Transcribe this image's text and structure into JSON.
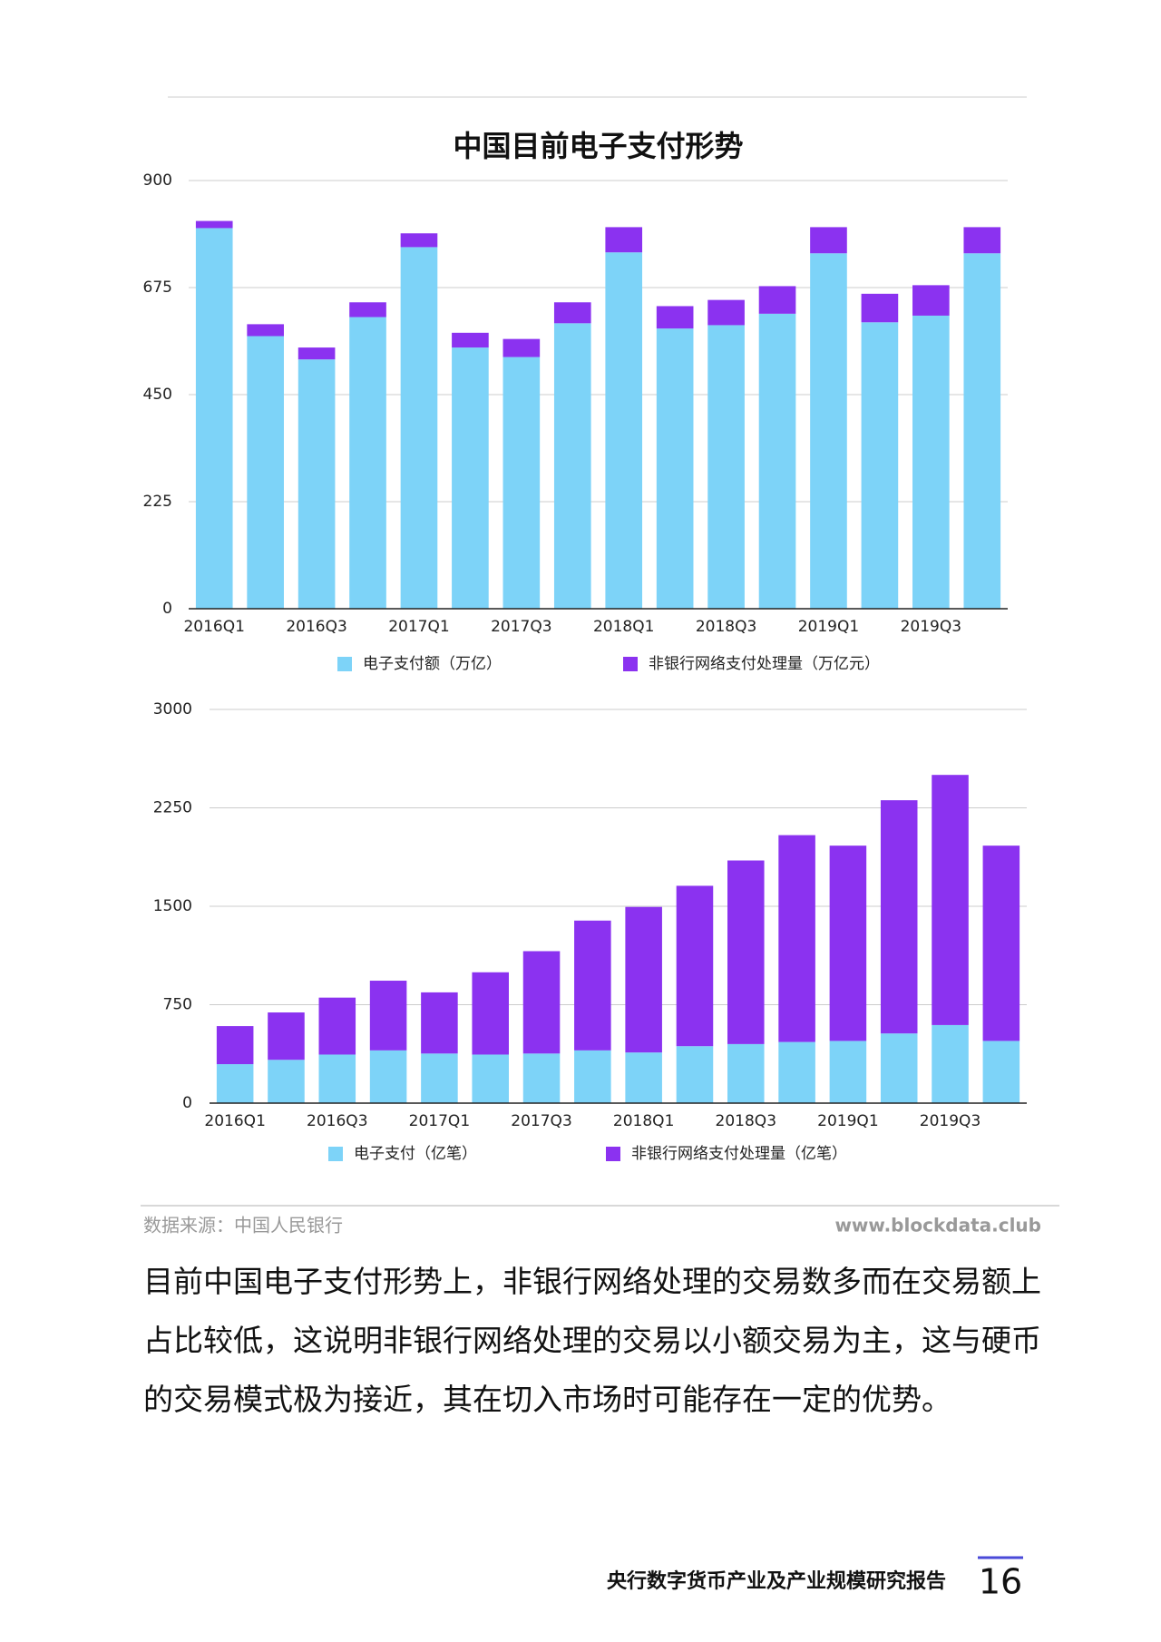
{
  "chart_data": [
    {
      "type": "bar",
      "stacked": true,
      "title": "中国目前电子支付形势",
      "categories": [
        "2016Q1",
        null,
        "2016Q3",
        null,
        "2017Q1",
        null,
        "2017Q3",
        null,
        "2018Q1",
        null,
        "2018Q3",
        null,
        "2019Q1",
        null,
        "2019Q3",
        null
      ],
      "series": [
        {
          "name": "电子支付额（万亿）",
          "color": "#7dd3f8",
          "values": [
            800,
            573,
            524,
            613,
            760,
            549,
            529,
            600,
            749,
            589,
            596,
            620,
            747,
            602,
            616,
            747
          ]
        },
        {
          "name": "非银行网络支付处理量（万亿元）",
          "color": "#8b32f0",
          "values": [
            15,
            25,
            25,
            31,
            29,
            31,
            38,
            44,
            53,
            47,
            53,
            58,
            55,
            60,
            64,
            55
          ]
        }
      ],
      "ylim": [
        0,
        900
      ],
      "yticks": [
        0,
        225,
        450,
        675,
        900
      ],
      "grid": true
    },
    {
      "type": "bar",
      "stacked": true,
      "categories": [
        "2016Q1",
        null,
        "2016Q3",
        null,
        "2017Q1",
        null,
        "2017Q3",
        null,
        "2018Q1",
        null,
        "2018Q3",
        null,
        "2019Q1",
        null,
        "2019Q3",
        null
      ],
      "series": [
        {
          "name": "电子支付（亿笔）",
          "color": "#7dd3f8",
          "values": [
            297,
            330,
            370,
            402,
            378,
            370,
            378,
            402,
            386,
            434,
            450,
            466,
            474,
            531,
            595,
            474
          ]
        },
        {
          "name": "非银行网络支付处理量（亿笔）",
          "color": "#8b32f0",
          "values": [
            290,
            361,
            434,
            531,
            466,
            627,
            780,
            989,
            1109,
            1222,
            1399,
            1576,
            1488,
            1777,
            1906,
            1488
          ]
        }
      ],
      "ylim": [
        0,
        3000
      ],
      "yticks": [
        0,
        750,
        1500,
        2250,
        3000
      ],
      "grid": true
    }
  ],
  "source": "数据来源：中国人民银行",
  "website": "www.blockdata.club",
  "paragraph": "目前中国电子支付形势上，非银行网络处理的交易数多而在交易额上占比较低，这说明非银行网络处理的交易以小额交易为主，这与硬币的交易模式极为接近，其在切入市场时可能存在一定的优势。",
  "footer": "央行数字货币产业及产业规模研究报告",
  "page_number": "16"
}
